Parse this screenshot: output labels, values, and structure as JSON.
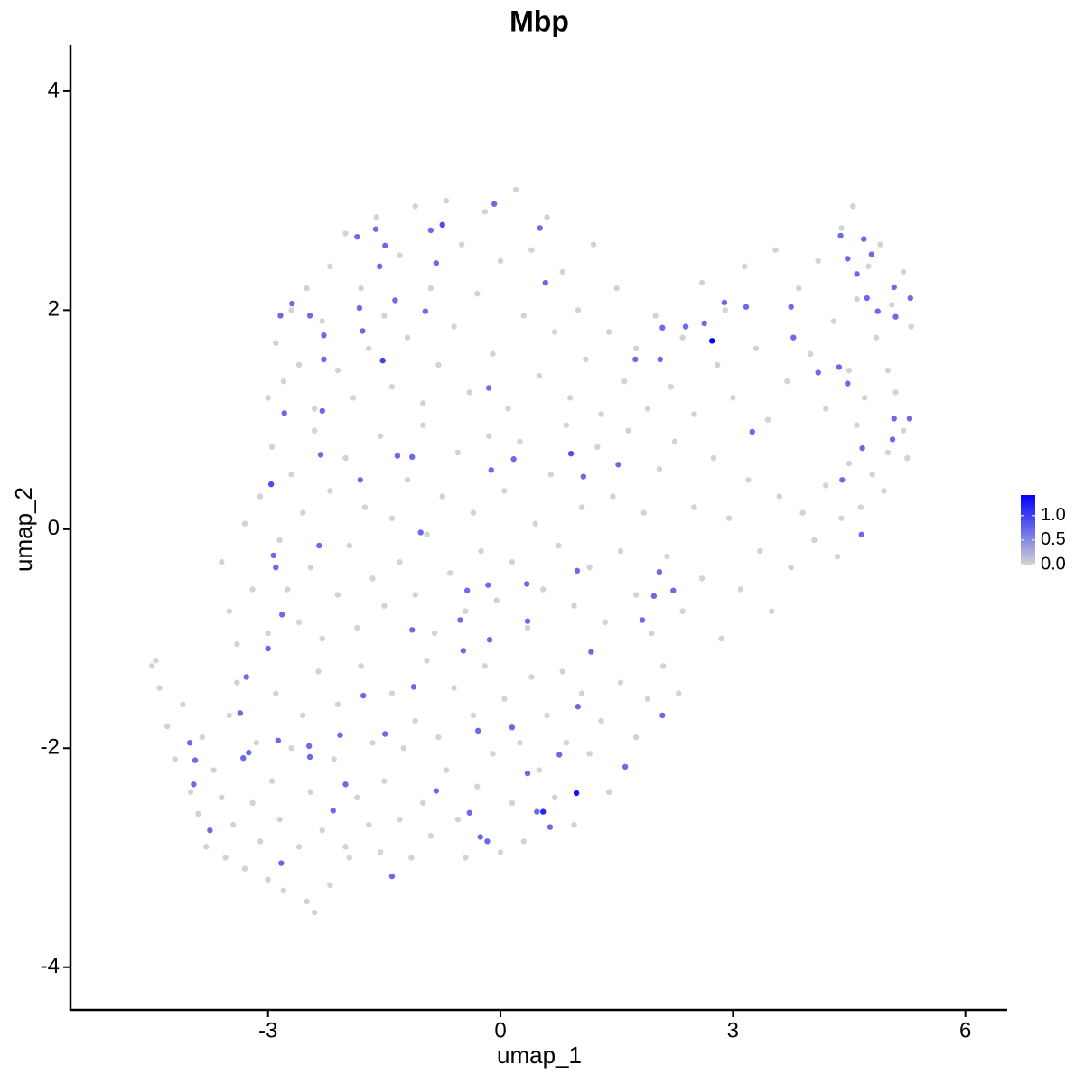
{
  "chart_data": {
    "type": "scatter",
    "title": "Mbp",
    "x_label": "umap_1",
    "y_label": "umap_2",
    "xlim": [
      -5.55,
      6.54
    ],
    "ylim": [
      -4.39,
      4.42
    ],
    "xticks": [
      -3,
      0,
      3,
      6
    ],
    "yticks": [
      -4,
      -2,
      0,
      2,
      4
    ],
    "color_low": "#d3d3d3",
    "color_high": "#0000ff",
    "clim": [
      0,
      1.42
    ],
    "cticks": [
      {
        "value": 0,
        "label": "0.0"
      },
      {
        "value": 0.5,
        "label": "0.5"
      },
      {
        "value": 1,
        "label": "1.0"
      }
    ],
    "x": [
      -4.5,
      -4.45,
      -4.4,
      -4.3,
      -4.2,
      -4.1,
      -4.0,
      -3.9,
      -3.85,
      -3.8,
      -3.7,
      -3.6,
      -3.55,
      -3.5,
      -3.45,
      -3.4,
      -3.3,
      -3.2,
      -3.15,
      -3.1,
      -3.0,
      -2.95,
      -2.9,
      -2.85,
      -2.8,
      -2.7,
      -2.6,
      -2.55,
      -2.5,
      -2.45,
      -2.4,
      -2.35,
      -2.3,
      -2.2,
      -2.15,
      -2.1,
      -2.0,
      -1.95,
      -1.85,
      -1.8,
      -1.7,
      -1.65,
      -1.55,
      -1.5,
      -1.4,
      -1.3,
      -1.25,
      -1.15,
      -1.1,
      -1.0,
      -0.95,
      -0.9,
      -0.8,
      -0.7,
      -0.6,
      -0.55,
      -0.45,
      -0.35,
      -0.3,
      -0.2,
      -0.1,
      0.0,
      0.05,
      0.15,
      0.25,
      0.3,
      0.4,
      0.5,
      0.6,
      0.7,
      0.8,
      0.85,
      0.95,
      1.05,
      1.15,
      1.3,
      1.4,
      1.55,
      1.75,
      1.9,
      2.1,
      2.3,
      -3.6,
      -3.5,
      -3.4,
      -3.3,
      -3.2,
      -3.1,
      -3.0,
      -2.95,
      -2.85,
      -2.75,
      -2.7,
      -2.6,
      -2.55,
      -2.45,
      -2.4,
      -2.3,
      -2.2,
      -2.1,
      -2.0,
      -1.95,
      -1.85,
      -1.75,
      -1.65,
      -1.55,
      -1.5,
      -1.4,
      -1.3,
      -1.2,
      -1.1,
      -1.0,
      -0.95,
      -0.85,
      -0.75,
      -0.65,
      -0.55,
      -0.45,
      -0.35,
      -0.25,
      -0.15,
      -0.05,
      0.05,
      0.15,
      0.25,
      0.35,
      0.45,
      0.55,
      0.65,
      0.75,
      0.85,
      0.95,
      1.05,
      1.15,
      1.25,
      1.35,
      1.45,
      1.55,
      1.65,
      1.75,
      1.85,
      1.95,
      2.05,
      2.15,
      2.25,
      2.35,
      2.5,
      2.6,
      2.75,
      2.85,
      2.95,
      3.1,
      3.2,
      3.35,
      3.5,
      3.6,
      3.75,
      3.9,
      4.05,
      4.2,
      4.35,
      4.5,
      4.65,
      4.8,
      5.0,
      5.2,
      -3.0,
      -2.9,
      -2.8,
      -2.7,
      -2.6,
      -2.5,
      -2.4,
      -2.3,
      -2.2,
      -2.1,
      -2.0,
      -1.9,
      -1.8,
      -1.7,
      -1.6,
      -1.5,
      -1.4,
      -1.3,
      -1.2,
      -1.1,
      -1.0,
      -0.9,
      -0.8,
      -0.7,
      -0.6,
      -0.5,
      -0.4,
      -0.3,
      -0.2,
      -0.1,
      0.0,
      0.1,
      0.2,
      0.3,
      0.4,
      0.5,
      0.6,
      0.7,
      0.8,
      0.9,
      1.0,
      1.1,
      1.2,
      1.3,
      1.4,
      1.5,
      1.6,
      1.75,
      1.9,
      2.0,
      2.2,
      2.35,
      2.5,
      2.6,
      2.8,
      2.9,
      3.0,
      3.15,
      3.3,
      3.45,
      3.55,
      3.7,
      3.85,
      4.0,
      4.1,
      4.2,
      4.3,
      4.4,
      4.5,
      4.55,
      4.6,
      4.7,
      4.75,
      4.85,
      4.9,
      5.0,
      5.05,
      5.1,
      5.2,
      5.3,
      5.25,
      4.95,
      4.6,
      4.4,
      -0.75,
      -0.9,
      -1.85,
      -1.49,
      -1.61,
      0.51,
      -0.08,
      -0.83,
      -1.56,
      0.58,
      -2.69,
      -2.84,
      -2.46,
      -1.36,
      -1.82,
      -0.97,
      -2.28,
      -1.78,
      -1.52,
      -2.28,
      -2.3,
      -2.79,
      -0.15,
      -0.12,
      0.17,
      -1.33,
      -1.14,
      0.91,
      1.07,
      1.52,
      -2.32,
      -2.96,
      -1.81,
      -2.34,
      -1.03,
      -2.93,
      -2.9,
      0.99,
      2.05,
      2.23,
      1.98,
      -0.43,
      -0.16,
      0.34,
      0.35,
      -0.52,
      -0.48,
      -0.14,
      -1.14,
      1.83,
      -2.82,
      -3.0,
      -3.28,
      -1.12,
      -1.77,
      -3.36,
      -1.49,
      -0.29,
      0.15,
      1.17,
      2.09,
      1.0,
      1.61,
      -4.01,
      -3.94,
      -3.25,
      -3.32,
      -2.87,
      -2.47,
      -2.07,
      -2.46,
      0.35,
      0.76,
      -0.83,
      -2.0,
      -3.96,
      -3.75,
      -2.16,
      -0.4,
      -0.26,
      -0.17,
      0.47,
      0.64,
      -1.4,
      -2.83,
      2.09,
      2.06,
      2.39,
      2.63,
      2.89,
      3.17,
      3.75,
      3.25,
      4.1,
      4.37,
      4.48,
      4.41,
      4.66,
      4.39,
      4.48,
      4.69,
      4.79,
      4.6,
      4.73,
      4.87,
      5.08,
      5.29,
      5.1,
      5.08,
      5.28,
      5.06,
      4.67,
      1.74,
      3.78,
      2.73,
      0.98,
      0.55
    ],
    "y": [
      -1.25,
      -1.2,
      -1.45,
      -1.8,
      -2.1,
      -1.6,
      -2.4,
      -2.6,
      -1.9,
      -2.9,
      -2.2,
      -2.45,
      -3.0,
      -1.7,
      -2.7,
      -1.4,
      -3.1,
      -2.5,
      -1.95,
      -2.85,
      -3.2,
      -2.3,
      -1.5,
      -2.65,
      -3.3,
      -2.0,
      -2.9,
      -1.7,
      -3.4,
      -2.4,
      -3.5,
      -1.3,
      -2.75,
      -3.25,
      -2.1,
      -1.6,
      -2.9,
      -3.0,
      -2.45,
      -1.25,
      -2.7,
      -1.95,
      -2.95,
      -2.3,
      -1.5,
      -2.65,
      -2.0,
      -3.0,
      -1.75,
      -2.5,
      -1.2,
      -2.8,
      -1.9,
      -2.2,
      -1.45,
      -2.65,
      -3.0,
      -1.7,
      -2.35,
      -1.25,
      -2.05,
      -2.95,
      -1.55,
      -2.5,
      -1.95,
      -2.85,
      -1.35,
      -2.2,
      -1.7,
      -2.45,
      -1.3,
      -1.95,
      -2.7,
      -1.5,
      -2.05,
      -1.75,
      -2.4,
      -1.4,
      -1.9,
      -1.55,
      -1.25,
      -1.5,
      -0.3,
      -0.75,
      -1.05,
      0.05,
      -0.55,
      0.3,
      -0.95,
      0.75,
      -0.1,
      -0.55,
      0.5,
      -0.85,
      0.15,
      -0.35,
      0.9,
      -1.0,
      0.35,
      -0.6,
      0.65,
      -0.15,
      -0.9,
      0.2,
      -0.45,
      0.85,
      -0.7,
      0.1,
      -0.3,
      0.45,
      -0.6,
      0.95,
      -0.05,
      -0.95,
      0.3,
      -0.4,
      0.7,
      -0.75,
      0.15,
      -0.2,
      0.85,
      -0.65,
      0.35,
      -0.3,
      0.8,
      -0.9,
      0.05,
      -0.55,
      0.5,
      -0.15,
      0.95,
      -0.7,
      0.2,
      -0.35,
      0.75,
      -0.85,
      0.3,
      -0.2,
      0.9,
      -0.6,
      0.15,
      -0.95,
      0.55,
      -0.25,
      0.8,
      -0.75,
      0.2,
      -0.45,
      0.65,
      -1.0,
      0.1,
      -0.55,
      0.45,
      -0.2,
      -0.75,
      0.3,
      -0.35,
      0.15,
      -0.1,
      0.4,
      -0.25,
      0.6,
      0.2,
      0.5,
      0.7,
      0.9,
      1.2,
      1.7,
      1.35,
      2.0,
      1.5,
      2.2,
      1.1,
      1.9,
      2.4,
      1.45,
      2.7,
      1.2,
      2.2,
      1.65,
      2.85,
      1.95,
      1.3,
      2.5,
      1.75,
      2.95,
      1.15,
      2.2,
      1.5,
      3.0,
      1.85,
      2.6,
      1.25,
      2.15,
      2.9,
      1.6,
      2.45,
      1.1,
      3.1,
      1.95,
      2.55,
      1.4,
      2.85,
      1.8,
      2.35,
      1.2,
      2.0,
      1.55,
      2.6,
      1.05,
      1.8,
      2.2,
      1.35,
      1.65,
      1.1,
      1.95,
      1.3,
      1.75,
      1.05,
      2.25,
      1.5,
      2.0,
      1.2,
      2.4,
      1.65,
      1.0,
      2.55,
      1.35,
      2.2,
      1.6,
      2.45,
      1.1,
      1.9,
      2.75,
      1.45,
      2.95,
      2.1,
      1.2,
      2.4,
      1.75,
      2.6,
      1.45,
      2.05,
      1.25,
      2.35,
      1.85,
      0.65,
      0.35,
      0.95,
      0.1,
      2.78,
      2.73,
      2.67,
      2.59,
      2.74,
      2.75,
      2.97,
      2.43,
      2.4,
      2.25,
      2.06,
      1.95,
      1.95,
      2.09,
      2.02,
      1.99,
      1.77,
      1.81,
      1.54,
      1.55,
      1.08,
      1.06,
      1.29,
      0.54,
      0.64,
      0.67,
      0.66,
      0.69,
      0.48,
      0.59,
      0.68,
      0.41,
      0.45,
      -0.15,
      -0.03,
      -0.24,
      -0.35,
      -0.38,
      -0.39,
      -0.56,
      -0.61,
      -0.56,
      -0.51,
      -0.5,
      -0.84,
      -0.83,
      -1.11,
      -1.01,
      -0.92,
      -0.83,
      -0.78,
      -1.09,
      -1.35,
      -1.44,
      -1.52,
      -1.68,
      -1.87,
      -1.84,
      -1.81,
      -1.12,
      -1.7,
      -1.62,
      -2.17,
      -1.95,
      -2.11,
      -2.04,
      -2.09,
      -1.93,
      -1.98,
      -1.88,
      -2.08,
      -2.23,
      -2.06,
      -2.39,
      -2.33,
      -2.33,
      -2.75,
      -2.57,
      -2.59,
      -2.81,
      -2.85,
      -2.58,
      -2.72,
      -3.17,
      -3.05,
      1.84,
      1.55,
      1.85,
      1.88,
      2.07,
      2.03,
      2.03,
      0.89,
      1.43,
      1.48,
      1.33,
      0.45,
      -0.05,
      2.68,
      2.47,
      2.65,
      2.51,
      2.33,
      2.11,
      1.99,
      2.21,
      2.11,
      1.94,
      1.01,
      1.01,
      0.82,
      0.74,
      1.55,
      1.75,
      1.72,
      -2.41,
      -2.58
    ],
    "values": [
      0,
      0,
      0,
      0,
      0,
      0,
      0,
      0,
      0,
      0,
      0,
      0,
      0,
      0,
      0,
      0,
      0,
      0,
      0,
      0,
      0,
      0,
      0,
      0,
      0,
      0,
      0,
      0,
      0,
      0,
      0,
      0,
      0,
      0,
      0,
      0,
      0,
      0,
      0,
      0,
      0,
      0,
      0,
      0,
      0,
      0,
      0,
      0,
      0,
      0,
      0,
      0,
      0,
      0,
      0,
      0,
      0,
      0,
      0,
      0,
      0,
      0,
      0,
      0,
      0,
      0,
      0,
      0,
      0,
      0,
      0,
      0,
      0,
      0,
      0,
      0,
      0,
      0,
      0,
      0,
      0,
      0,
      0,
      0,
      0,
      0,
      0,
      0,
      0,
      0,
      0,
      0,
      0,
      0,
      0,
      0,
      0,
      0,
      0,
      0,
      0,
      0,
      0,
      0,
      0,
      0,
      0,
      0,
      0,
      0,
      0,
      0,
      0,
      0,
      0,
      0,
      0,
      0,
      0,
      0,
      0,
      0,
      0,
      0,
      0,
      0,
      0,
      0,
      0,
      0,
      0,
      0,
      0,
      0,
      0,
      0,
      0,
      0,
      0,
      0,
      0,
      0,
      0,
      0,
      0,
      0,
      0,
      0,
      0,
      0,
      0,
      0,
      0,
      0,
      0,
      0,
      0,
      0,
      0,
      0,
      0,
      0,
      0,
      0,
      0,
      0,
      0,
      0,
      0,
      0,
      0,
      0,
      0,
      0,
      0,
      0,
      0,
      0,
      0,
      0,
      0,
      0,
      0,
      0,
      0,
      0,
      0,
      0,
      0,
      0,
      0,
      0,
      0,
      0,
      0,
      0,
      0,
      0,
      0,
      0,
      0,
      0,
      0,
      0,
      0,
      0,
      0,
      0,
      0,
      0,
      0,
      0,
      0,
      0,
      0,
      0,
      0,
      0,
      0,
      0,
      0,
      0,
      0,
      0,
      0,
      0,
      0,
      0,
      0,
      0,
      0,
      0,
      0,
      0,
      0,
      0,
      0,
      0,
      0,
      0,
      0,
      0,
      0,
      0,
      0,
      0,
      0,
      0,
      0,
      0,
      0.9,
      0.7,
      0.7,
      0.7,
      0.7,
      0.7,
      0.7,
      0.7,
      0.7,
      0.7,
      0.7,
      0.7,
      0.7,
      0.7,
      0.7,
      0.7,
      0.7,
      0.7,
      1.0,
      0.7,
      0.7,
      0.7,
      0.7,
      0.7,
      0.7,
      0.7,
      0.7,
      0.9,
      0.7,
      0.7,
      0.7,
      0.9,
      0.7,
      0.7,
      0.7,
      0.7,
      0.7,
      0.7,
      0.7,
      0.7,
      0.7,
      0.7,
      0.7,
      0.7,
      0.7,
      0.7,
      0.7,
      0.7,
      0.7,
      0.7,
      0.7,
      0.7,
      0.7,
      0.7,
      0.7,
      0.7,
      0.7,
      0.7,
      0.7,
      0.7,
      0.7,
      0.7,
      0.7,
      0.7,
      0.7,
      0.7,
      0.7,
      0.7,
      0.7,
      0.7,
      0.7,
      0.7,
      0.7,
      0.7,
      0.7,
      0.7,
      0.7,
      0.7,
      0.7,
      0.7,
      0.7,
      0.7,
      0.7,
      0.7,
      0.7,
      0.7,
      0.7,
      0.7,
      0.7,
      0.7,
      0.7,
      0.7,
      0.7,
      0.7,
      0.7,
      0.7,
      0.7,
      0.7,
      0.7,
      0.7,
      0.7,
      0.7,
      0.7,
      0.7,
      0.7,
      0.7,
      0.7,
      0.7,
      0.7,
      0.7,
      0.7,
      0.7,
      0.7,
      0.7,
      1.42,
      1.3,
      1.15
    ]
  }
}
